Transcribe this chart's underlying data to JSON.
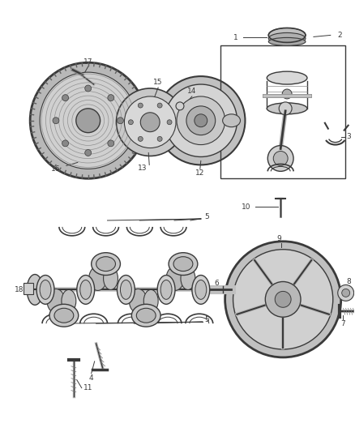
{
  "bg_color": "#ffffff",
  "lc": "#3a3a3a",
  "figsize": [
    4.38,
    5.33
  ],
  "dpi": 100,
  "fs": 6.5,
  "fw": "normal"
}
